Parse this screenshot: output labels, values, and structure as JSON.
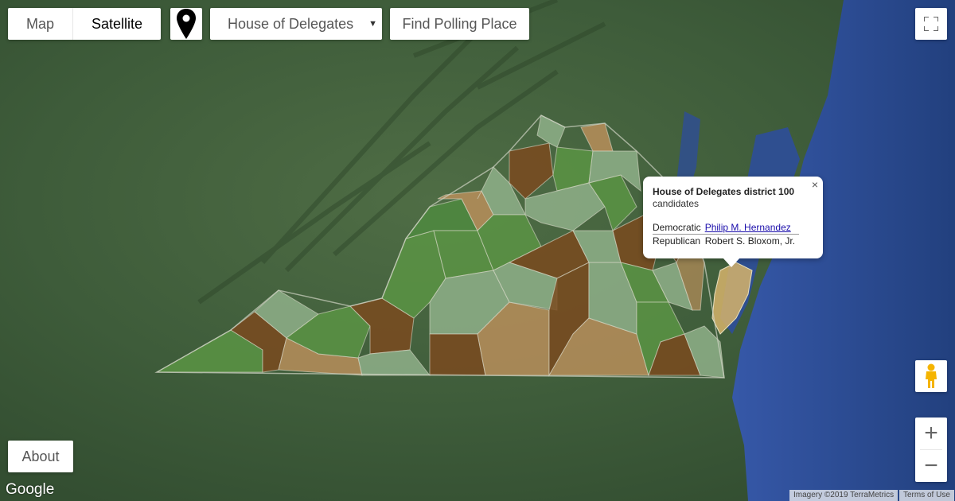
{
  "map_controls": {
    "map_label": "Map",
    "satellite_label": "Satellite",
    "active_type": "Satellite",
    "pin_icon": "map-pin-icon",
    "select_value": "House of Delegates",
    "find_label": "Find Polling Place",
    "about_label": "About",
    "fullscreen_icon": "fullscreen-icon",
    "pegman_icon": "pegman-icon",
    "zoom_in": "+",
    "zoom_out": "−"
  },
  "popup": {
    "title": "House of Delegates district 100",
    "subtitle": "candidates",
    "close": "×",
    "rows": [
      {
        "party": "Democratic",
        "name": "Philip M. Hernandez",
        "link": true
      },
      {
        "party": "Republican",
        "name": "Robert S. Bloxom, Jr.",
        "link": false
      }
    ]
  },
  "footer": {
    "logo": "Google",
    "imagery": "Imagery ©2019 TerraMetrics",
    "terms": "Terms of Use"
  },
  "colors": {
    "dem_green": "#4f8a3f",
    "light_green": "#8fb08a",
    "rep_brown": "#7a4a1e",
    "tan": "#b98e5a",
    "highlight": "#d6b36b",
    "ocean": "#2c4f8f"
  }
}
